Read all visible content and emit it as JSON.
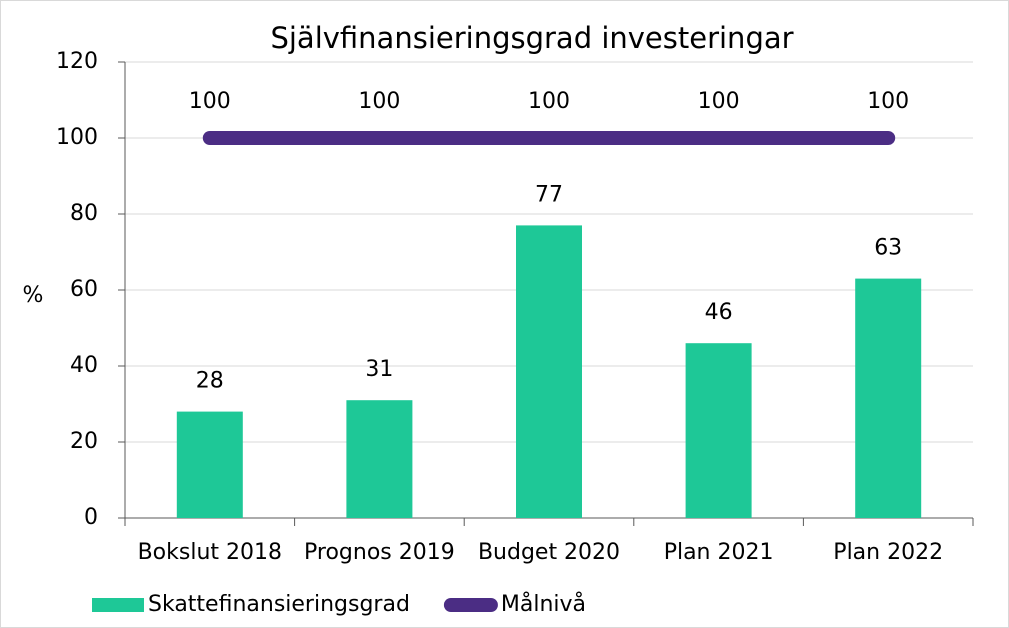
{
  "chart_data": {
    "type": "bar",
    "title": "Självfinansieringsgrad investeringar",
    "y_label": "%",
    "categories": [
      "Bokslut 2018",
      "Prognos 2019",
      "Budget 2020",
      "Plan 2021",
      "Plan 2022"
    ],
    "series": [
      {
        "name": "Skattefinansieringsgrad",
        "type": "bar",
        "color": "#1ec897",
        "values": [
          28,
          31,
          77,
          46,
          63
        ]
      },
      {
        "name": "Målnivå",
        "type": "line",
        "color": "#4b2d84",
        "values": [
          100,
          100,
          100,
          100,
          100
        ]
      }
    ],
    "ylim": [
      0,
      120
    ],
    "yticks": [
      0,
      20,
      40,
      60,
      80,
      100,
      120
    ],
    "grid": true,
    "legend": "bottom-left"
  }
}
